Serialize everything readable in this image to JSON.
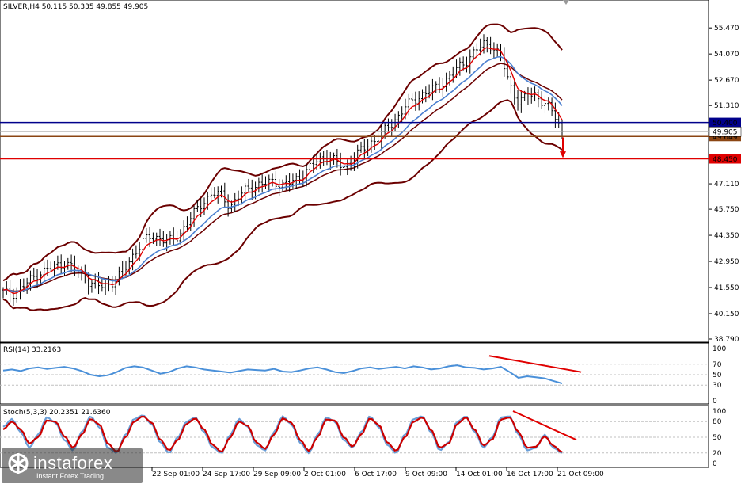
{
  "chart_data": [
    {
      "type": "candlestick",
      "title": "SILVER,H4  50.115 50.335 49.855 49.905",
      "symbol": "SILVER,H4",
      "ohlc": [
        50.115,
        50.335,
        49.855,
        49.905
      ],
      "y_ticks": [
        "55.470",
        "54.070",
        "52.670",
        "51.310",
        "49.905",
        "47.110",
        "45.750",
        "44.350",
        "42.950",
        "41.550",
        "40.150",
        "38.790"
      ],
      "ylim": [
        38.79,
        56.2
      ],
      "x_ticks": [
        "22 Sep 01:00",
        "24 Sep 17:00",
        "29 Sep 09:00",
        "2 Oct 01:00",
        "6 Oct 17:00",
        "9 Oct 09:00",
        "14 Oct 01:00",
        "16 Oct 17:00",
        "21 Oct 09:00"
      ],
      "levels": [
        {
          "value": 50.4,
          "label": "50.400",
          "color": "#00008b"
        },
        {
          "value": 49.649,
          "label": "49.649",
          "color": "#8b4513"
        },
        {
          "value": 48.45,
          "label": "48.450",
          "color": "#e00000"
        }
      ],
      "current_price": {
        "value": 49.905,
        "label": "49.905"
      },
      "price_path": [
        41.3,
        41.2,
        41.5,
        41.9,
        42.3,
        42.5,
        42.7,
        42.9,
        42.6,
        42.2,
        41.8,
        41.6,
        41.7,
        42.0,
        42.6,
        43.4,
        44.0,
        44.3,
        44.2,
        44.0,
        44.3,
        45.0,
        45.6,
        46.2,
        46.6,
        46.5,
        45.9,
        46.4,
        46.9,
        47.0,
        47.1,
        47.3,
        47.0,
        47.2,
        47.5,
        47.9,
        48.4,
        48.6,
        48.3,
        48.0,
        48.4,
        48.9,
        49.3,
        49.6,
        50.1,
        50.6,
        51.2,
        51.6,
        51.9,
        52.1,
        52.4,
        52.8,
        53.3,
        53.7,
        54.2,
        54.6,
        54.5,
        53.9,
        52.4,
        51.5,
        51.8,
        51.9,
        51.4,
        50.9,
        49.9
      ],
      "colors": {
        "candles": "#000000",
        "ema_fast": "#e00000",
        "ema_slow": "#4a7fd0",
        "bands": "#6b0000"
      }
    },
    {
      "type": "line",
      "title": "RSI(14) 33.2163",
      "y_ticks": [
        "100",
        "70",
        "50",
        "30",
        "0"
      ],
      "ylim": [
        0,
        100
      ],
      "values": [
        58,
        60,
        57,
        62,
        64,
        61,
        63,
        65,
        62,
        57,
        50,
        47,
        49,
        55,
        63,
        66,
        64,
        58,
        52,
        55,
        62,
        66,
        64,
        60,
        58,
        56,
        54,
        57,
        60,
        59,
        58,
        61,
        56,
        55,
        58,
        62,
        64,
        60,
        55,
        53,
        57,
        62,
        64,
        61,
        63,
        65,
        62,
        66,
        64,
        60,
        62,
        66,
        68,
        64,
        63,
        60,
        62,
        65,
        55,
        44,
        47,
        45,
        43,
        38,
        33.2
      ],
      "trendline_note": "red divergence line"
    },
    {
      "type": "line",
      "title": "Stoch(5,3,3) 20.2351 21.6360",
      "y_ticks": [
        "100",
        "80",
        "50",
        "20",
        "0"
      ],
      "ylim": [
        0,
        100
      ],
      "main": [
        70,
        85,
        60,
        30,
        55,
        88,
        78,
        45,
        25,
        60,
        90,
        70,
        30,
        20,
        55,
        85,
        92,
        75,
        40,
        20,
        50,
        80,
        88,
        60,
        30,
        20,
        55,
        85,
        70,
        35,
        25,
        60,
        90,
        75,
        40,
        20,
        55,
        88,
        80,
        45,
        30,
        60,
        90,
        70,
        35,
        20,
        55,
        85,
        90,
        60,
        25,
        40,
        80,
        90,
        60,
        30,
        50,
        88,
        90,
        55,
        25,
        30,
        55,
        30,
        20.2
      ],
      "signal": [
        65,
        80,
        65,
        38,
        50,
        82,
        80,
        52,
        30,
        55,
        85,
        75,
        38,
        22,
        50,
        80,
        90,
        78,
        45,
        25,
        45,
        76,
        86,
        65,
        35,
        22,
        50,
        80,
        72,
        40,
        28,
        55,
        86,
        78,
        45,
        24,
        50,
        84,
        82,
        50,
        32,
        55,
        86,
        74,
        40,
        24,
        50,
        80,
        88,
        64,
        30,
        38,
        76,
        88,
        64,
        34,
        46,
        84,
        88,
        60,
        30,
        32,
        52,
        34,
        21.6
      ]
    }
  ],
  "branding": {
    "logo_text": "instaforex",
    "logo_sub": "Instant Forex Trading"
  }
}
